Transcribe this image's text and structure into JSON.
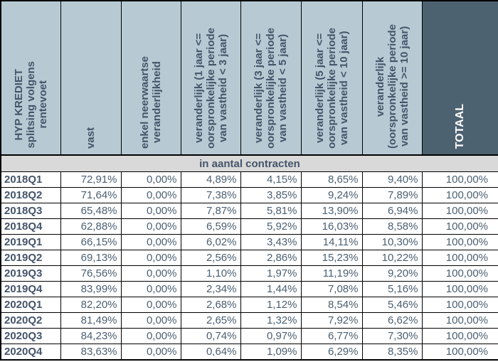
{
  "table": {
    "header": {
      "columns": [
        {
          "id": "rentevoet",
          "label": "HYP KREDIET\nsplitsing volgens\nrentevoet"
        },
        {
          "id": "vast",
          "label": "vast"
        },
        {
          "id": "enkel-neerwaarts",
          "label": "enkel neerwaartse\nveranderlijkheid"
        },
        {
          "id": "var-1-3",
          "label": "veranderlijk (1 jaar <=\noorspronkelijke periode\nvan vastheid < 3 jaar)"
        },
        {
          "id": "var-3-5",
          "label": "veranderlijk (3 jaar <=\noorspronkelijke periode\nvan vastheid < 5 jaar)"
        },
        {
          "id": "var-5-10",
          "label": "veranderlijk (5 jaar <=\noorspronkelijke periode\nvan vastheid < 10 jaar)"
        },
        {
          "id": "var-10plus",
          "label": "veranderlijk\n(oorspronkelijke periode\nvan vastheid >= 10 jaar)"
        },
        {
          "id": "totaal",
          "label": "TOTAAL"
        }
      ]
    },
    "banner": "in aantal contracten",
    "rows": [
      {
        "label": "2018Q1",
        "values": [
          "72,91%",
          "0,00%",
          "4,89%",
          "4,15%",
          "8,65%",
          "9,40%",
          "100,00%"
        ]
      },
      {
        "label": "2018Q2",
        "values": [
          "71,64%",
          "0,00%",
          "7,38%",
          "3,85%",
          "9,24%",
          "7,89%",
          "100,00%"
        ]
      },
      {
        "label": "2018Q3",
        "values": [
          "65,48%",
          "0,00%",
          "7,87%",
          "5,81%",
          "13,90%",
          "6,94%",
          "100,00%"
        ]
      },
      {
        "label": "2018Q4",
        "values": [
          "62,88%",
          "0,00%",
          "6,59%",
          "5,92%",
          "16,03%",
          "8,58%",
          "100,00%"
        ]
      },
      {
        "label": "2019Q1",
        "values": [
          "66,15%",
          "0,00%",
          "6,02%",
          "3,43%",
          "14,11%",
          "10,30%",
          "100,00%"
        ]
      },
      {
        "label": "2019Q2",
        "values": [
          "69,13%",
          "0,00%",
          "2,56%",
          "2,86%",
          "15,23%",
          "10,22%",
          "100,00%"
        ]
      },
      {
        "label": "2019Q3",
        "values": [
          "76,56%",
          "0,00%",
          "1,10%",
          "1,97%",
          "11,19%",
          "9,20%",
          "100,00%"
        ]
      },
      {
        "label": "2019Q4",
        "values": [
          "83,99%",
          "0,00%",
          "2,34%",
          "1,44%",
          "7,08%",
          "5,16%",
          "100,00%"
        ]
      },
      {
        "label": "2020Q1",
        "values": [
          "82,20%",
          "0,00%",
          "2,68%",
          "1,12%",
          "8,54%",
          "5,46%",
          "100,00%"
        ]
      },
      {
        "label": "2020Q2",
        "values": [
          "81,49%",
          "0,00%",
          "2,65%",
          "1,32%",
          "7,92%",
          "6,62%",
          "100,00%"
        ]
      },
      {
        "label": "2020Q3",
        "values": [
          "84,23%",
          "0,00%",
          "0,74%",
          "0,97%",
          "6,77%",
          "7,30%",
          "100,00%"
        ]
      },
      {
        "label": "2020Q4",
        "values": [
          "83,63%",
          "0,00%",
          "0,64%",
          "1,09%",
          "6,29%",
          "8,35%",
          "100,00%"
        ]
      }
    ]
  },
  "colors": {
    "header_bg": "#B7CAD3",
    "total_header_bg": "#4D6270",
    "banner_bg": "#D9D9D9",
    "header_text": "#44546A",
    "total_header_text": "#FFFFFF",
    "data_text": "#4A5F72",
    "border": "#000000"
  }
}
